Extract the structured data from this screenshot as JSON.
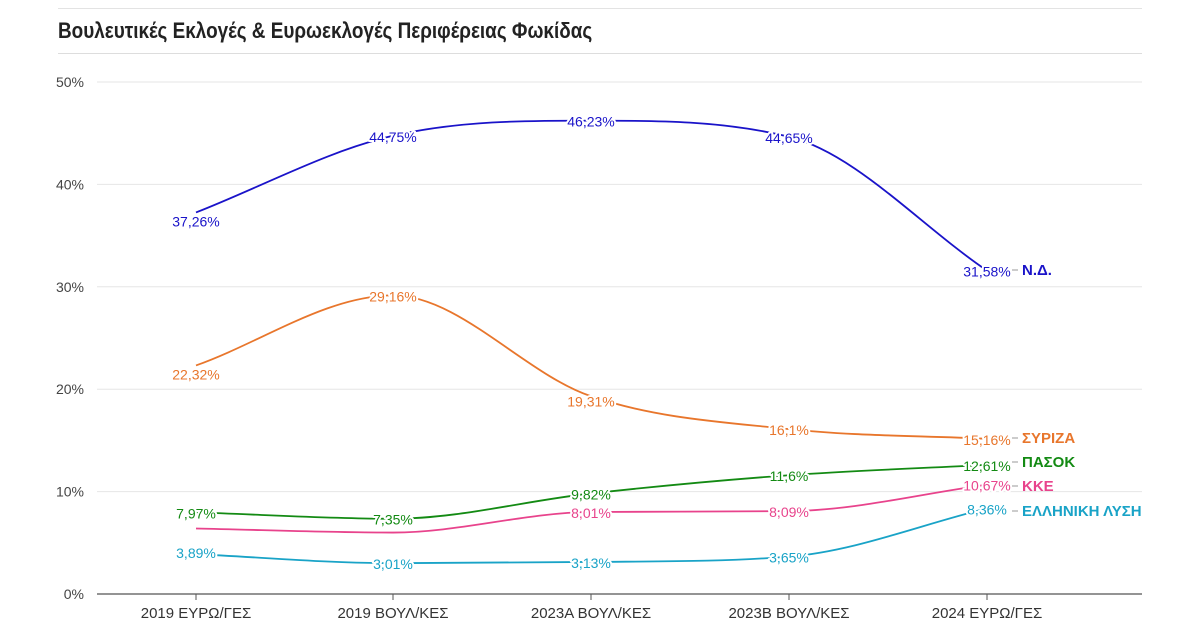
{
  "title": "Βουλευτικές Εκλογές & Ευρωεκλογές Περιφέρειας Φωκίδας",
  "chart_data": {
    "type": "line",
    "categories": [
      "2019 ΕΥΡΩ/ΓΕΣ",
      "2019 ΒΟΥΛ/ΚΕΣ",
      "2023Α ΒΟΥΛ/ΚΕΣ",
      "2023Β ΒΟΥΛ/ΚΕΣ",
      "2024 ΕΥΡΩ/ΓΕΣ"
    ],
    "ylim": [
      0,
      50
    ],
    "yticks": [
      {
        "value": 0,
        "label": "0%"
      },
      {
        "value": 10,
        "label": "10%"
      },
      {
        "value": 20,
        "label": "20%"
      },
      {
        "value": 30,
        "label": "30%"
      },
      {
        "value": 40,
        "label": "40%"
      },
      {
        "value": 50,
        "label": "50%"
      }
    ],
    "grid": true,
    "legend": "right-end-labels",
    "series": [
      {
        "name": "Ν.Δ.",
        "color": "#1a13c9",
        "values": [
          37.26,
          44.75,
          46.23,
          44.65,
          31.58
        ],
        "labels": [
          "37,26%",
          "44,75%",
          "46,23%",
          "44,65%",
          "31,58%"
        ]
      },
      {
        "name": "ΣΥΡΙΖΑ",
        "color": "#e8762c",
        "values": [
          22.32,
          29.16,
          19.31,
          16.1,
          15.16
        ],
        "labels": [
          "22,32%",
          "29,16%",
          "19,31%",
          "16,1%",
          "15,16%"
        ]
      },
      {
        "name": "ΠΑΣΟΚ",
        "color": "#138a13",
        "values": [
          7.97,
          7.35,
          9.82,
          11.6,
          12.61
        ],
        "labels": [
          "7,97%",
          "7,35%",
          "9,82%",
          "11,6%",
          "12,61%"
        ]
      },
      {
        "name": "ΚΚΕ",
        "color": "#e8438c",
        "values": [
          6.4,
          6.0,
          8.01,
          8.09,
          10.67
        ],
        "labels": [
          "",
          "",
          "8,01%",
          "8,09%",
          "10,67%"
        ]
      },
      {
        "name": "ΕΛΛΗΝΙΚΗ ΛΥΣΗ",
        "color": "#19a3c7",
        "values": [
          3.89,
          3.01,
          3.13,
          3.65,
          8.36
        ],
        "labels": [
          "3,89%",
          "3,01%",
          "3,13%",
          "3,65%",
          "8,36%"
        ]
      }
    ]
  }
}
